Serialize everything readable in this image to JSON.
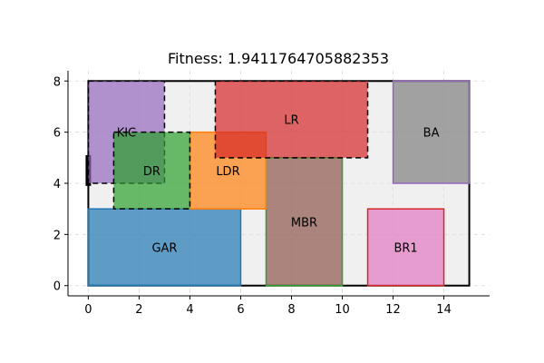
{
  "chart_data": {
    "type": "floorplan",
    "title": "Fitness: 1.9411764705882353",
    "xlim": [
      -0.8,
      15.8
    ],
    "ylim": [
      -0.4,
      8.4
    ],
    "x_ticks": [
      0,
      2,
      4,
      6,
      8,
      10,
      12,
      14
    ],
    "x_tick_labels": [
      "0",
      "2",
      "4",
      "6",
      "8",
      "10",
      "12",
      "14"
    ],
    "y_ticks": [
      0,
      2,
      4,
      6,
      8
    ],
    "y_tick_labels": [
      "0",
      "2",
      "4",
      "6",
      "8"
    ],
    "grid": true,
    "plot_boundary": {
      "x": 0,
      "y": 0,
      "width": 15,
      "height": 8,
      "fill": "#f0f0f0",
      "edge": "#000000"
    },
    "entrance_marker": {
      "x": 0,
      "y": 3.9,
      "width": 0.2,
      "height": 1.2,
      "color": "#000000"
    },
    "rooms": [
      {
        "name": "GAR",
        "x": 0,
        "y": 0,
        "width": 6,
        "height": 3,
        "fill": "#1f77b4",
        "edge": "#1f77b4",
        "dashed": false,
        "label_x": 3,
        "label_y": 1.5
      },
      {
        "name": "MBR",
        "x": 7,
        "y": 0,
        "width": 3,
        "height": 5,
        "fill": "#8c564b",
        "edge": "#2ca02c",
        "dashed": false,
        "label_x": 8.5,
        "label_y": 2.5
      },
      {
        "name": "BR1",
        "x": 11,
        "y": 0,
        "width": 3,
        "height": 3,
        "fill": "#e377c2",
        "edge": "#d62728",
        "dashed": false,
        "label_x": 12.5,
        "label_y": 1.5
      },
      {
        "name": "LDR",
        "x": 4,
        "y": 3,
        "width": 3,
        "height": 3,
        "fill": "#ff7f0e",
        "edge": "#ff7f0e",
        "dashed": false,
        "label_x": 5.5,
        "label_y": 4.5
      },
      {
        "name": "LR",
        "x": 5,
        "y": 5,
        "width": 6,
        "height": 3,
        "fill": "#d62728",
        "edge": "#000000",
        "dashed": true,
        "label_x": 8,
        "label_y": 6.5
      },
      {
        "name": "BA",
        "x": 12,
        "y": 4,
        "width": 3,
        "height": 4,
        "fill": "#7f7f7f",
        "edge": "#9467bd",
        "dashed": false,
        "label_x": 13.5,
        "label_y": 6
      },
      {
        "name": "KIC",
        "x": 0,
        "y": 4,
        "width": 3,
        "height": 4,
        "fill": "#9467bd",
        "edge": "#000000",
        "dashed": true,
        "label_x": 1.5,
        "label_y": 6
      },
      {
        "name": "DR",
        "x": 1,
        "y": 3,
        "width": 3,
        "height": 3,
        "fill": "#2ca02c",
        "edge": "#000000",
        "dashed": true,
        "label_x": 2.5,
        "label_y": 4.5
      }
    ]
  }
}
